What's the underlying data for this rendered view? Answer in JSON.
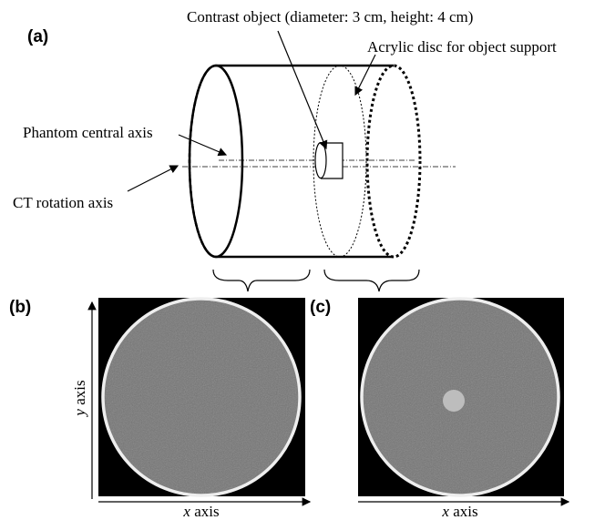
{
  "panel_a": {
    "label": "(a)",
    "contrast_object": "Contrast object (diameter: 3 cm, height: 4 cm)",
    "acrylic_disc": "Acrylic disc for object support",
    "phantom_axis": "Phantom central axis",
    "rotation_axis": "CT rotation axis"
  },
  "panel_b": {
    "label": "(b)",
    "y_axis": {
      "symbol": "y",
      "word": "axis"
    },
    "x_axis": {
      "symbol": "x",
      "word": "axis"
    }
  },
  "panel_c": {
    "label": "(c)",
    "x_axis": {
      "symbol": "x",
      "word": "axis"
    }
  }
}
